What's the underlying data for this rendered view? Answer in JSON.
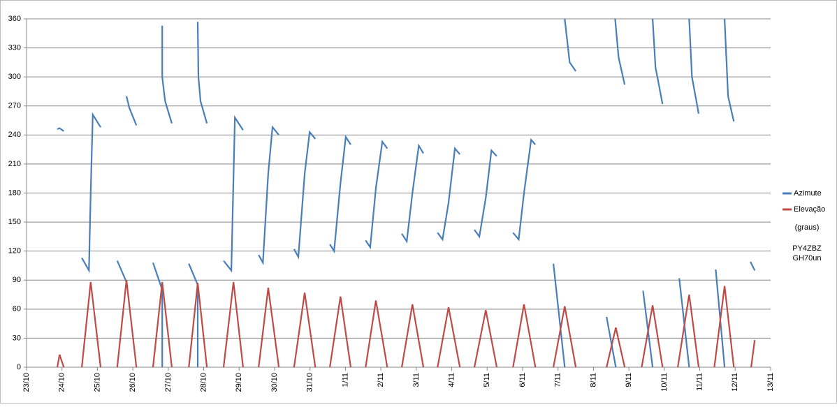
{
  "chart_data": {
    "type": "line",
    "xlim": [
      0,
      21
    ],
    "xticks": [
      {
        "value": 0,
        "label": "23/10"
      },
      {
        "value": 1,
        "label": "24/10"
      },
      {
        "value": 2,
        "label": "25/10"
      },
      {
        "value": 3,
        "label": "26/10"
      },
      {
        "value": 4,
        "label": "27/10"
      },
      {
        "value": 5,
        "label": "28/10"
      },
      {
        "value": 6,
        "label": "29/10"
      },
      {
        "value": 7,
        "label": "30/10"
      },
      {
        "value": 8,
        "label": "31/10"
      },
      {
        "value": 9,
        "label": "1/11"
      },
      {
        "value": 10,
        "label": "2/11"
      },
      {
        "value": 11,
        "label": "3/11"
      },
      {
        "value": 12,
        "label": "4/11"
      },
      {
        "value": 13,
        "label": "5/11"
      },
      {
        "value": 14,
        "label": "6/11"
      },
      {
        "value": 15,
        "label": "7/11"
      },
      {
        "value": 16,
        "label": "8/11"
      },
      {
        "value": 17,
        "label": "9/11"
      },
      {
        "value": 18,
        "label": "10/11"
      },
      {
        "value": 19,
        "label": "11/11"
      },
      {
        "value": 20,
        "label": "12/11"
      },
      {
        "value": 21,
        "label": "13/11"
      }
    ],
    "ylim": [
      0,
      360
    ],
    "yticks": [
      0,
      30,
      60,
      90,
      120,
      150,
      180,
      210,
      240,
      270,
      300,
      330,
      360
    ],
    "grid": true,
    "legend": "right",
    "annotations": [
      "(graus)",
      "PY4ZBZ",
      "GH70un"
    ],
    "series": [
      {
        "name": "Azimute",
        "color": "#4a7ebb",
        "x": [
          0.87,
          0.93,
          1.05,
          null,
          1.56,
          1.76,
          1.81,
          1.87,
          2.09,
          null,
          2.56,
          2.82,
          null,
          2.82,
          2.9,
          3.1,
          null,
          3.57,
          3.83,
          3.83,
          null,
          3.83,
          3.83,
          3.91,
          4.1,
          null,
          4.58,
          4.83,
          4.83,
          null,
          4.83,
          4.85,
          4.91,
          5.09,
          null,
          5.56,
          5.78,
          5.88,
          6.11,
          null,
          6.55,
          6.67,
          6.82,
          6.94,
          7.12,
          null,
          7.55,
          7.67,
          7.85,
          7.99,
          8.15,
          null,
          8.56,
          8.68,
          8.86,
          9.01,
          9.15,
          null,
          9.57,
          9.7,
          9.86,
          10.04,
          10.18,
          null,
          10.59,
          10.73,
          10.89,
          11.07,
          11.2,
          null,
          11.6,
          11.74,
          11.91,
          12.09,
          12.23,
          null,
          12.64,
          12.78,
          12.96,
          13.12,
          13.27,
          null,
          13.73,
          13.89,
          14.04,
          14.24,
          14.36,
          null,
          14.87,
          15.19,
          null,
          15.19,
          15.33,
          15.5,
          null,
          16.37,
          16.63,
          null,
          16.61,
          16.71,
          16.88,
          null,
          17.4,
          17.67,
          null,
          17.67,
          17.75,
          17.95,
          null,
          18.42,
          18.7,
          null,
          18.7,
          18.78,
          18.97,
          null,
          19.45,
          19.7,
          null,
          19.7,
          19.8,
          19.96,
          null,
          20.43,
          20.55
        ],
        "values": [
          246,
          247,
          244,
          null,
          113,
          100,
          180,
          261,
          248,
          null,
          110,
          88,
          null,
          280,
          268,
          250,
          null,
          108,
          80,
          0,
          null,
          353,
          300,
          275,
          252,
          null,
          107,
          85,
          0,
          null,
          357,
          300,
          275,
          252,
          null,
          110,
          100,
          258,
          245,
          null,
          116,
          108,
          200,
          248,
          240,
          null,
          122,
          114,
          200,
          243,
          236,
          null,
          127,
          120,
          190,
          238,
          230,
          null,
          131,
          124,
          185,
          233,
          226,
          null,
          138,
          130,
          180,
          229,
          221,
          null,
          139,
          132,
          170,
          226,
          220,
          null,
          142,
          135,
          175,
          224,
          218,
          null,
          139,
          132,
          180,
          235,
          230,
          null,
          107,
          0,
          null,
          360,
          315,
          306,
          null,
          52,
          0,
          null,
          360,
          320,
          292,
          null,
          79,
          0,
          null,
          360,
          310,
          272,
          null,
          92,
          0,
          null,
          360,
          300,
          262,
          null,
          101,
          0,
          null,
          360,
          280,
          254,
          null,
          109,
          100
        ]
      },
      {
        "name": "Elevação",
        "color": "#be4b48",
        "x": [
          0.87,
          0.93,
          1.05,
          null,
          1.56,
          1.81,
          2.09,
          null,
          2.56,
          2.82,
          3.1,
          null,
          3.57,
          3.83,
          4.1,
          null,
          4.58,
          4.83,
          5.09,
          null,
          5.56,
          5.84,
          6.11,
          null,
          6.55,
          6.82,
          7.12,
          null,
          7.55,
          7.85,
          8.15,
          null,
          8.56,
          8.86,
          9.15,
          null,
          9.57,
          9.86,
          10.18,
          null,
          10.59,
          10.89,
          11.2,
          null,
          11.6,
          11.91,
          12.23,
          null,
          12.64,
          12.96,
          13.27,
          null,
          13.73,
          14.04,
          14.36,
          null,
          14.87,
          15.19,
          15.5,
          null,
          16.37,
          16.63,
          16.88,
          null,
          17.36,
          17.67,
          17.95,
          null,
          18.38,
          18.7,
          18.97,
          null,
          19.41,
          19.7,
          19.96,
          null,
          20.45,
          20.55
        ],
        "values": [
          0,
          13,
          0,
          null,
          0,
          88,
          0,
          null,
          0,
          90,
          0,
          null,
          0,
          88,
          0,
          null,
          0,
          87,
          0,
          null,
          0,
          88,
          0,
          null,
          0,
          82,
          0,
          null,
          0,
          77,
          0,
          null,
          0,
          73,
          0,
          null,
          0,
          69,
          0,
          null,
          0,
          65,
          0,
          null,
          0,
          62,
          0,
          null,
          0,
          59,
          0,
          null,
          0,
          65,
          0,
          null,
          0,
          63,
          0,
          null,
          0,
          41,
          0,
          null,
          0,
          64,
          0,
          null,
          0,
          75,
          0,
          null,
          0,
          84,
          0,
          null,
          0,
          28
        ]
      }
    ]
  }
}
